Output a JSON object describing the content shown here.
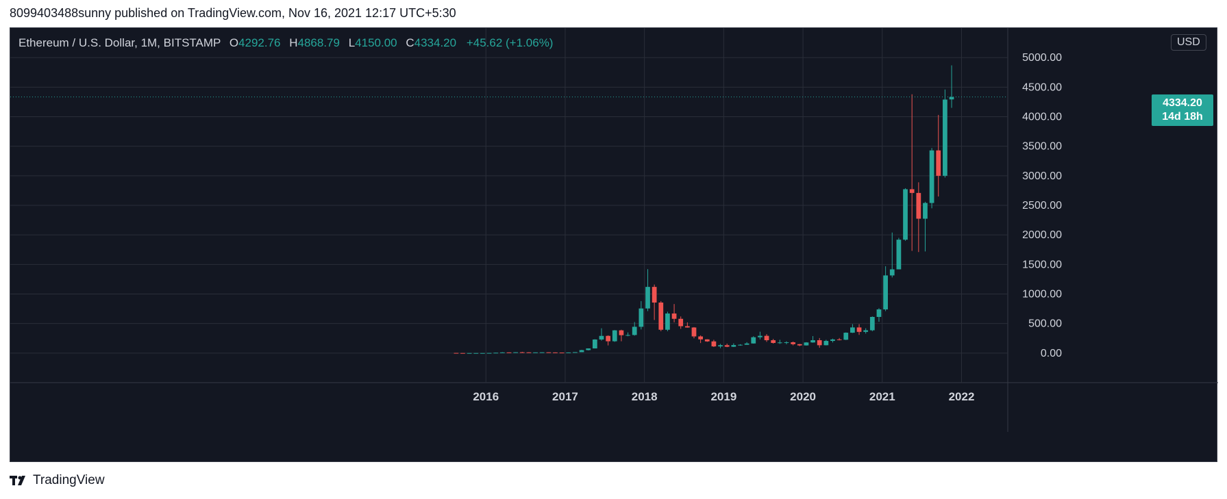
{
  "published_text": "8099403488sunny published on TradingView.com, Nov 16, 2021 12:17 UTC+5:30",
  "legend": {
    "symbol": "Ethereum / U.S. Dollar, 1M, BITSTAMP",
    "open_label": "O",
    "open": "4292.76",
    "high_label": "H",
    "high": "4868.79",
    "low_label": "L",
    "low": "4150.00",
    "close_label": "C",
    "close": "4334.20",
    "change": "+45.62 (+1.06%)"
  },
  "currency": "USD",
  "last_price": {
    "price": "4334.20",
    "countdown": "14d 18h"
  },
  "footer": {
    "logo_text": "TradingView"
  },
  "colors": {
    "up": "#26a69a",
    "down": "#ef5350",
    "background": "#131722",
    "grid": "#2a2e39",
    "text": "#d1d4dc"
  },
  "chart_data": {
    "type": "candlestick",
    "interval": "1M",
    "y_axis": {
      "ticks": [
        "0.00",
        "500.00",
        "1000.00",
        "1500.00",
        "2000.00",
        "2500.00",
        "3000.00",
        "3500.00",
        "4000.00",
        "4500.00",
        "5000.00"
      ],
      "range": [
        -500,
        5500
      ]
    },
    "x_axis": {
      "ticks": [
        "2016",
        "2017",
        "2018",
        "2019",
        "2020",
        "2021",
        "2022"
      ],
      "range": [
        "2010-01",
        "2022-08"
      ]
    },
    "last_value": 4334.2,
    "candles": [
      [
        "2015-08",
        2.8,
        3.0,
        0.7,
        1.3
      ],
      [
        "2015-09",
        1.3,
        1.4,
        0.6,
        0.7
      ],
      [
        "2015-10",
        0.7,
        1.2,
        0.4,
        0.9
      ],
      [
        "2015-11",
        0.9,
        1.1,
        0.8,
        0.9
      ],
      [
        "2015-12",
        0.9,
        1.0,
        0.9,
        0.9
      ],
      [
        "2016-01",
        0.9,
        2.3,
        0.9,
        2.2
      ],
      [
        "2016-02",
        2.2,
        6.5,
        2.2,
        6.2
      ],
      [
        "2016-03",
        6.2,
        15.0,
        6.0,
        11.4
      ],
      [
        "2016-04",
        11.4,
        12.0,
        6.8,
        8.8
      ],
      [
        "2016-05",
        8.8,
        14.5,
        8.5,
        14.0
      ],
      [
        "2016-06",
        14.0,
        21.5,
        10.0,
        12.3
      ],
      [
        "2016-07",
        12.3,
        15.0,
        9.5,
        11.2
      ],
      [
        "2016-08",
        11.2,
        12.0,
        10.5,
        11.9
      ],
      [
        "2016-09",
        11.9,
        14.0,
        11.2,
        13.2
      ],
      [
        "2016-10",
        13.2,
        13.5,
        10.5,
        11.0
      ],
      [
        "2016-11",
        11.0,
        11.5,
        8.5,
        8.6
      ],
      [
        "2016-12",
        8.6,
        9.0,
        5.9,
        8.0
      ],
      [
        "2017-01",
        8.0,
        11.5,
        7.8,
        10.7
      ],
      [
        "2017-02",
        10.7,
        16.0,
        10.5,
        15.9
      ],
      [
        "2017-03",
        15.9,
        55.0,
        15.5,
        50.2
      ],
      [
        "2017-04",
        50.2,
        80.0,
        45.0,
        79.0
      ],
      [
        "2017-05",
        79.0,
        235.0,
        78.0,
        230.0
      ],
      [
        "2017-06",
        230.0,
        420.0,
        210.0,
        291.0
      ],
      [
        "2017-07",
        291.0,
        300.0,
        130.0,
        200.0
      ],
      [
        "2017-08",
        200.0,
        390.0,
        190.0,
        385.0
      ],
      [
        "2017-09",
        385.0,
        395.0,
        200.0,
        303.0
      ],
      [
        "2017-10",
        303.0,
        350.0,
        285.0,
        306.0
      ],
      [
        "2017-11",
        306.0,
        525.0,
        295.0,
        445.0
      ],
      [
        "2017-12",
        445.0,
        880.0,
        400.0,
        755.0
      ],
      [
        "2018-01",
        755.0,
        1420.0,
        710.0,
        1120.0
      ],
      [
        "2018-02",
        1120.0,
        1160.0,
        560.0,
        855.0
      ],
      [
        "2018-03",
        855.0,
        880.0,
        370.0,
        395.0
      ],
      [
        "2018-04",
        395.0,
        700.0,
        370.0,
        670.0
      ],
      [
        "2018-05",
        670.0,
        830.0,
        520.0,
        580.0
      ],
      [
        "2018-06",
        580.0,
        620.0,
        410.0,
        455.0
      ],
      [
        "2018-07",
        455.0,
        520.0,
        430.0,
        433.0
      ],
      [
        "2018-08",
        433.0,
        440.0,
        250.0,
        282.0
      ],
      [
        "2018-09",
        282.0,
        300.0,
        170.0,
        232.0
      ],
      [
        "2018-10",
        232.0,
        235.0,
        190.0,
        198.0
      ],
      [
        "2018-11",
        198.0,
        225.0,
        103.0,
        113.0
      ],
      [
        "2018-12",
        113.0,
        156.0,
        83.0,
        134.0
      ],
      [
        "2019-01",
        134.0,
        160.0,
        100.0,
        107.0
      ],
      [
        "2019-02",
        107.0,
        165.0,
        103.0,
        136.0
      ],
      [
        "2019-03",
        136.0,
        150.0,
        125.0,
        141.0
      ],
      [
        "2019-04",
        141.0,
        185.0,
        140.0,
        163.0
      ],
      [
        "2019-05",
        163.0,
        285.0,
        160.0,
        268.0
      ],
      [
        "2019-06",
        268.0,
        362.0,
        232.0,
        292.0
      ],
      [
        "2019-07",
        292.0,
        320.0,
        190.0,
        218.0
      ],
      [
        "2019-08",
        218.0,
        240.0,
        160.0,
        172.0
      ],
      [
        "2019-09",
        172.0,
        225.0,
        155.0,
        180.0
      ],
      [
        "2019-10",
        180.0,
        200.0,
        150.0,
        183.0
      ],
      [
        "2019-11",
        183.0,
        195.0,
        131.0,
        151.0
      ],
      [
        "2019-12",
        151.0,
        155.0,
        117.0,
        130.0
      ],
      [
        "2020-01",
        130.0,
        185.0,
        127.0,
        180.0
      ],
      [
        "2020-02",
        180.0,
        288.0,
        175.0,
        218.0
      ],
      [
        "2020-03",
        218.0,
        255.0,
        90.0,
        133.0
      ],
      [
        "2020-04",
        133.0,
        225.0,
        130.0,
        206.0
      ],
      [
        "2020-05",
        206.0,
        245.0,
        180.0,
        231.0
      ],
      [
        "2020-06",
        231.0,
        255.0,
        215.0,
        226.0
      ],
      [
        "2020-07",
        226.0,
        350.0,
        220.0,
        345.0
      ],
      [
        "2020-08",
        345.0,
        490.0,
        340.0,
        434.0
      ],
      [
        "2020-09",
        434.0,
        490.0,
        308.0,
        359.0
      ],
      [
        "2020-10",
        359.0,
        420.0,
        330.0,
        386.0
      ],
      [
        "2020-11",
        386.0,
        620.0,
        370.0,
        612.0
      ],
      [
        "2020-12",
        612.0,
        760.0,
        530.0,
        739.0
      ],
      [
        "2021-01",
        739.0,
        1470.0,
        710.0,
        1314.0
      ],
      [
        "2021-02",
        1314.0,
        2040.0,
        1280.0,
        1417.0
      ],
      [
        "2021-03",
        1417.0,
        1950.0,
        1430.0,
        1919.0
      ],
      [
        "2021-04",
        1919.0,
        2790.0,
        1900.0,
        2773.0
      ],
      [
        "2021-05",
        2773.0,
        4380.0,
        1730.0,
        2710.0
      ],
      [
        "2021-06",
        2710.0,
        2890.0,
        1710.0,
        2274.0
      ],
      [
        "2021-07",
        2274.0,
        2560.0,
        1720.0,
        2540.0
      ],
      [
        "2021-08",
        2540.0,
        3470.0,
        2450.0,
        3430.0
      ],
      [
        "2021-09",
        3430.0,
        4030.0,
        2650.0,
        3000.0
      ],
      [
        "2021-10",
        3000.0,
        4460.0,
        2970.0,
        4290.0
      ],
      [
        "2021-11",
        4292.76,
        4868.79,
        4150.0,
        4334.2
      ]
    ]
  }
}
